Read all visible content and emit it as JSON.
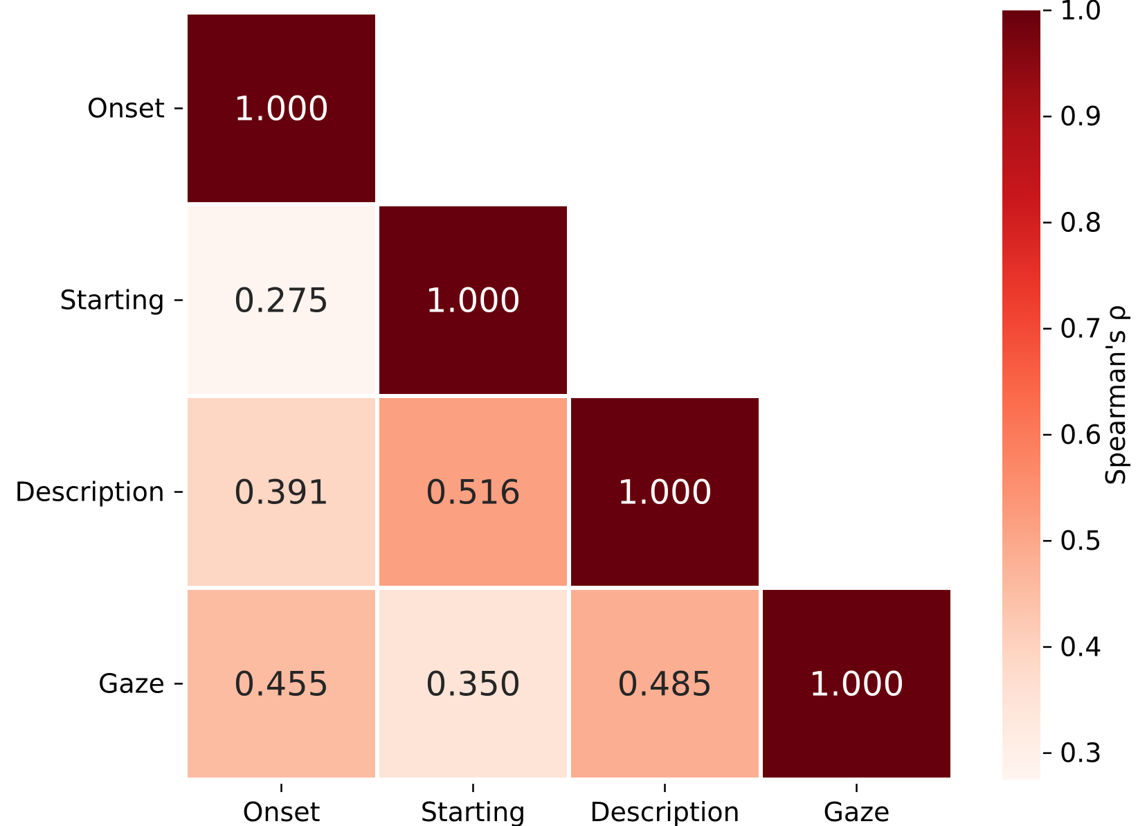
{
  "chart_data": {
    "type": "heatmap",
    "title": "",
    "xlabel": "",
    "ylabel": "",
    "x_categories": [
      "Onset",
      "Starting",
      "Description",
      "Gaze"
    ],
    "y_categories": [
      "Onset",
      "Starting",
      "Description",
      "Gaze"
    ],
    "mask": "upper-triangle",
    "cells": [
      {
        "row": 0,
        "col": 0,
        "value": 1.0,
        "label": "1.000"
      },
      {
        "row": 1,
        "col": 0,
        "value": 0.275,
        "label": "0.275"
      },
      {
        "row": 1,
        "col": 1,
        "value": 1.0,
        "label": "1.000"
      },
      {
        "row": 2,
        "col": 0,
        "value": 0.391,
        "label": "0.391"
      },
      {
        "row": 2,
        "col": 1,
        "value": 0.516,
        "label": "0.516"
      },
      {
        "row": 2,
        "col": 2,
        "value": 1.0,
        "label": "1.000"
      },
      {
        "row": 3,
        "col": 0,
        "value": 0.455,
        "label": "0.455"
      },
      {
        "row": 3,
        "col": 1,
        "value": 0.35,
        "label": "0.350"
      },
      {
        "row": 3,
        "col": 2,
        "value": 0.485,
        "label": "0.485"
      },
      {
        "row": 3,
        "col": 3,
        "value": 1.0,
        "label": "1.000"
      }
    ],
    "colorbar": {
      "label": "Spearman's ρ",
      "colormap": "Reds",
      "range": [
        0.275,
        1.0
      ],
      "ticks": [
        1.0,
        0.9,
        0.8,
        0.7,
        0.6,
        0.5,
        0.4,
        0.3
      ],
      "tick_labels": [
        "1.0",
        "0.9",
        "0.8",
        "0.7",
        "0.6",
        "0.5",
        "0.4",
        "0.3"
      ],
      "placement": "right"
    },
    "grid": false,
    "colors": {
      "max": "#67000d",
      "min": "#fff5f0",
      "text_dark": "#262626",
      "text_light": "#ffffff",
      "cell_border": "#ffffff"
    }
  }
}
